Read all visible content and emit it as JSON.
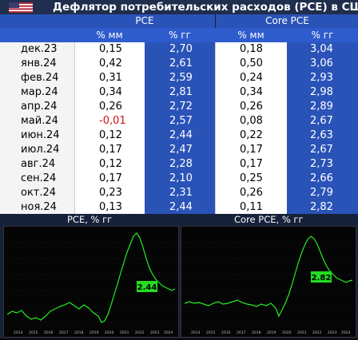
{
  "header": {
    "title": "Дефлятор потребительских расходов (PCE) в США",
    "flag_icon": "us-flag-icon"
  },
  "table": {
    "groups": [
      "PCE",
      "Core PCE"
    ],
    "subheaders": [
      "% мм",
      "% гг",
      "% мм",
      "% гг"
    ],
    "rows": [
      {
        "date": "дек.23",
        "pce_mm": "0,15",
        "pce_yy": "2,70",
        "core_mm": "0,18",
        "core_yy": "3,04"
      },
      {
        "date": "янв.24",
        "pce_mm": "0,42",
        "pce_yy": "2,61",
        "core_mm": "0,50",
        "core_yy": "3,06"
      },
      {
        "date": "фев.24",
        "pce_mm": "0,31",
        "pce_yy": "2,59",
        "core_mm": "0,24",
        "core_yy": "2,93"
      },
      {
        "date": "мар.24",
        "pce_mm": "0,34",
        "pce_yy": "2,81",
        "core_mm": "0,34",
        "core_yy": "2,98"
      },
      {
        "date": "апр.24",
        "pce_mm": "0,26",
        "pce_yy": "2,72",
        "core_mm": "0,26",
        "core_yy": "2,89"
      },
      {
        "date": "май.24",
        "pce_mm": "-0,01",
        "pce_yy": "2,57",
        "core_mm": "0,08",
        "core_yy": "2,67"
      },
      {
        "date": "июн.24",
        "pce_mm": "0,12",
        "pce_yy": "2,44",
        "core_mm": "0,22",
        "core_yy": "2,63"
      },
      {
        "date": "июл.24",
        "pce_mm": "0,17",
        "pce_yy": "2,47",
        "core_mm": "0,17",
        "core_yy": "2,67"
      },
      {
        "date": "авг.24",
        "pce_mm": "0,12",
        "pce_yy": "2,28",
        "core_mm": "0,17",
        "core_yy": "2,73"
      },
      {
        "date": "сен.24",
        "pce_mm": "0,17",
        "pce_yy": "2,10",
        "core_mm": "0,25",
        "core_yy": "2,66"
      },
      {
        "date": "окт.24",
        "pce_mm": "0,23",
        "pce_yy": "2,31",
        "core_mm": "0,26",
        "core_yy": "2,79"
      },
      {
        "date": "ноя.24",
        "pce_mm": "0,13",
        "pce_yy": "2,44",
        "core_mm": "0,11",
        "core_yy": "2,82"
      }
    ]
  },
  "charts": {
    "pce_title": "PCE, % гг",
    "core_title": "Core PCE, % гг",
    "pce_label": "2.44",
    "core_label": "2.82",
    "x_ticks": [
      "2014",
      "2015",
      "2016",
      "2017",
      "2018",
      "2019",
      "2020",
      "2021",
      "2022",
      "2023",
      "2024"
    ]
  },
  "colors": {
    "line": "#22ee22",
    "label_bg": "#22dd22",
    "header_bg": "#1f2e4d",
    "cell_blue": "#2a53b8",
    "negative": "#d11111"
  }
}
